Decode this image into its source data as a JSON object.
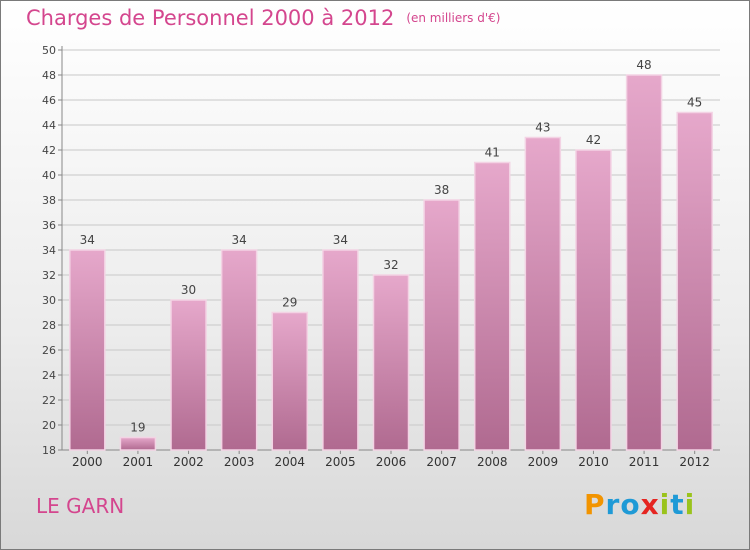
{
  "header": {
    "title": "Charges de Personnel 2000 à 2012",
    "subtitle": "(en milliers d'€)"
  },
  "footer": {
    "commune": "LE GARN",
    "logo": {
      "letters": [
        "P",
        "r",
        "o",
        "x",
        "i",
        "t",
        "i"
      ],
      "colors": [
        "#f29400",
        "#1f9ad6",
        "#1f9ad6",
        "#e52521",
        "#9ac31c",
        "#1f9ad6",
        "#9ac31c"
      ]
    }
  },
  "colors": {
    "bar": "#c7789f",
    "accent": "#d4468e"
  },
  "chart_data": {
    "type": "bar",
    "categories": [
      "2000",
      "2001",
      "2002",
      "2003",
      "2004",
      "2005",
      "2006",
      "2007",
      "2008",
      "2009",
      "2010",
      "2011",
      "2012"
    ],
    "values": [
      34,
      19,
      30,
      34,
      29,
      34,
      32,
      38,
      41,
      43,
      42,
      48,
      45
    ],
    "ylim": [
      18,
      50
    ],
    "yticks": [
      18,
      20,
      22,
      24,
      26,
      28,
      30,
      32,
      34,
      36,
      38,
      40,
      42,
      44,
      46,
      48,
      50
    ],
    "grid": true
  }
}
